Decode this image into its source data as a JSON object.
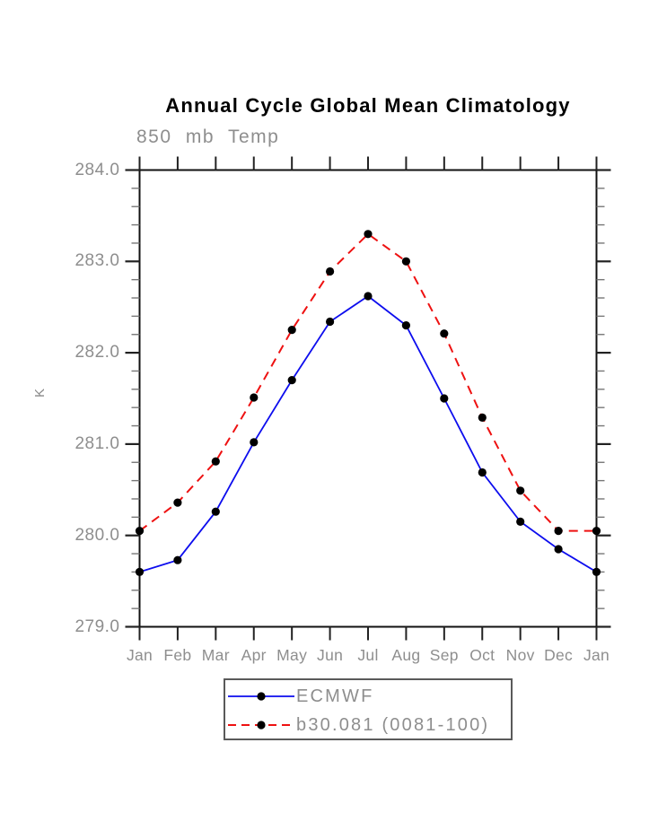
{
  "page": {
    "background": "#ffffff"
  },
  "chart": {
    "title": "Annual Cycle Global Mean Climatology",
    "subtitle": "850 mb Temp",
    "ylabel": "K"
  },
  "colors": {
    "title": "#000000",
    "axis": "#111111",
    "major_tick": "#222222",
    "minor_tick": "#777777",
    "label_gray": "#8e8e8e",
    "legend_border": "#5a5a5a",
    "marker": "#000000",
    "series_blue": "#0d0dee",
    "series_red": "#ee1111"
  },
  "chart_data": {
    "type": "line",
    "title": "Annual Cycle Global Mean Climatology",
    "subtitle": "850 mb Temp",
    "xlabel": "",
    "ylabel": "K",
    "categories": [
      "Jan",
      "Feb",
      "Mar",
      "Apr",
      "May",
      "Jun",
      "Jul",
      "Aug",
      "Sep",
      "Oct",
      "Nov",
      "Dec",
      "Jan"
    ],
    "ylim": [
      279.0,
      284.0
    ],
    "yticks": [
      "284.0",
      "283.0",
      "282.0",
      "281.0",
      "280.0",
      "279.0"
    ],
    "ytick_values": [
      284.0,
      283.0,
      282.0,
      281.0,
      280.0,
      279.0
    ],
    "minor_tick_interval": 0.2,
    "grid": false,
    "legend_position": "bottom-center-boxed",
    "marker": {
      "shape": "circle",
      "color": "#000000",
      "radius": 4.6
    },
    "series": [
      {
        "name": "ECMWF",
        "color": "#0d0dee",
        "line_style": "solid",
        "values": [
          279.6,
          279.73,
          280.26,
          281.02,
          281.7,
          282.34,
          282.62,
          282.3,
          281.5,
          280.69,
          280.15,
          279.85,
          279.6
        ]
      },
      {
        "name": "b30.081 (0081-100)",
        "color": "#ee1111",
        "line_style": "dashed",
        "values": [
          280.05,
          280.36,
          280.81,
          281.51,
          282.25,
          282.89,
          283.3,
          283.0,
          282.21,
          281.29,
          280.49,
          280.05,
          280.05
        ]
      }
    ]
  }
}
